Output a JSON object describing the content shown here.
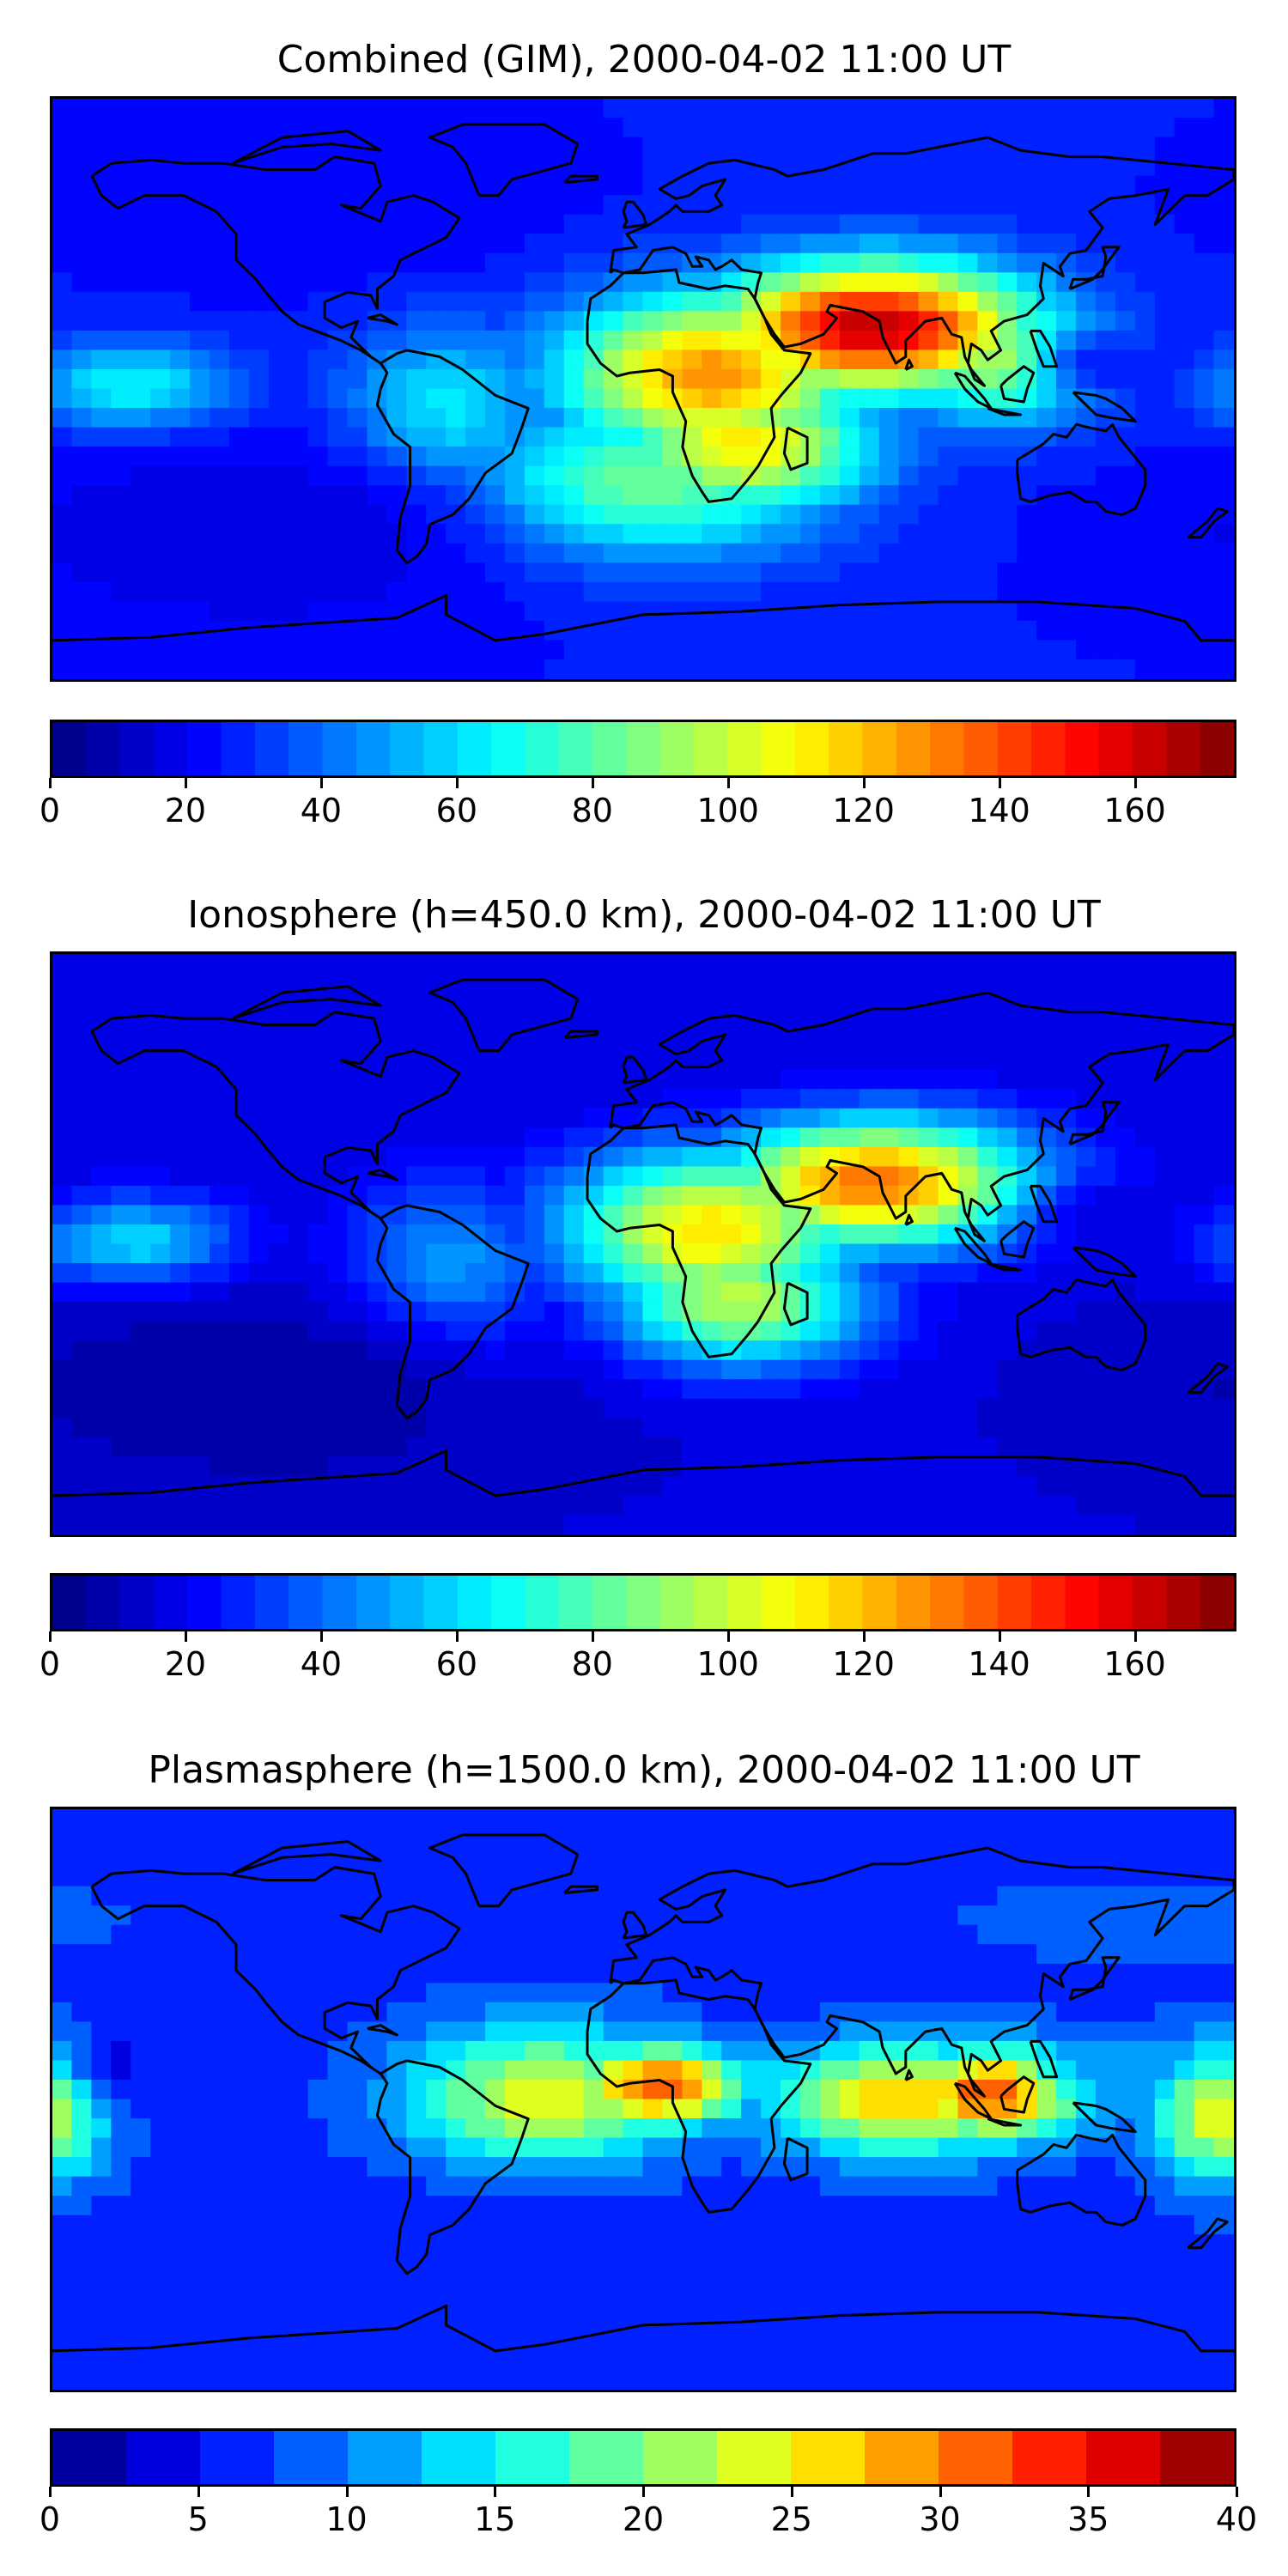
{
  "panels": [
    {
      "title": "Combined (GIM), 2000-04-02 11:00 UT",
      "colorbar": {
        "min": 0,
        "max": 175,
        "levels": 35,
        "ticks": [
          0,
          20,
          40,
          60,
          80,
          100,
          120,
          140,
          160
        ],
        "tick_labels": [
          "0",
          "20",
          "40",
          "60",
          "80",
          "100",
          "120",
          "140",
          "160"
        ]
      }
    },
    {
      "title": "Ionosphere  (h=450.0 km), 2000-04-02 11:00 UT",
      "colorbar": {
        "min": 0,
        "max": 175,
        "levels": 35,
        "ticks": [
          0,
          20,
          40,
          60,
          80,
          100,
          120,
          140,
          160
        ],
        "tick_labels": [
          "0",
          "20",
          "40",
          "60",
          "80",
          "100",
          "120",
          "140",
          "160"
        ]
      }
    },
    {
      "title": "Plasmasphere (h=1500.0 km), 2000-04-02 11:00 UT",
      "colorbar": {
        "min": 0,
        "max": 40,
        "levels": 16,
        "ticks": [
          0,
          5,
          10,
          15,
          20,
          25,
          30,
          35,
          40
        ],
        "tick_labels": [
          "0",
          "5",
          "10",
          "15",
          "20",
          "25",
          "30",
          "35",
          "40"
        ]
      }
    }
  ],
  "chart_data": [
    {
      "type": "heatmap",
      "title": "Combined (GIM), 2000-04-02 11:00 UT",
      "colormap": "jet",
      "projection": "world map, longitude -180 to 180, latitude -90 to 90",
      "value_range": [
        0,
        175
      ],
      "maxima": [
        {
          "region": "Arabian Sea / India",
          "value": 165
        },
        {
          "region": "Central Africa",
          "value": 130
        },
        {
          "region": "Southern Africa / Madagascar",
          "value": 115
        },
        {
          "region": "South Atlantic",
          "value": 95
        },
        {
          "region": "Southeast Asia",
          "value": 100
        },
        {
          "region": "Central Pacific",
          "value": 70
        },
        {
          "region": "South America",
          "value": 70
        }
      ],
      "minima": [
        {
          "region": "Western Pacific (east of Philippines)",
          "value": 25
        },
        {
          "region": "South Pacific",
          "value": 15
        },
        {
          "region": "North America / Arctic",
          "value": 20
        }
      ]
    },
    {
      "type": "heatmap",
      "title": "Ionosphere  (h=450.0 km), 2000-04-02 11:00 UT",
      "colormap": "jet",
      "projection": "world map, longitude -180 to 180, latitude -90 to 90",
      "value_range": [
        0,
        175
      ],
      "maxima": [
        {
          "region": "Arabian Sea / India",
          "value": 135
        },
        {
          "region": "Central Africa",
          "value": 115
        },
        {
          "region": "Southern Africa",
          "value": 100
        },
        {
          "region": "Central Pacific",
          "value": 65
        },
        {
          "region": "South America",
          "value": 55
        }
      ],
      "minima": [
        {
          "region": "Western Pacific (east of Philippines)",
          "value": 15
        },
        {
          "region": "South Pacific",
          "value": 5
        },
        {
          "region": "North Atlantic / Arctic",
          "value": 15
        }
      ]
    },
    {
      "type": "heatmap",
      "title": "Plasmasphere (h=1500.0 km), 2000-04-02 11:00 UT",
      "colormap": "jet",
      "projection": "world map, longitude -180 to 180, latitude -90 to 90",
      "value_range": [
        0,
        40
      ],
      "maxima": [
        {
          "region": "Maritime Southeast Asia",
          "value": 33
        },
        {
          "region": "Central Africa (Gulf of Guinea)",
          "value": 32
        },
        {
          "region": "Indian Ocean",
          "value": 27
        },
        {
          "region": "Tropical Atlantic",
          "value": 24
        },
        {
          "region": "Western Pacific edge",
          "value": 24
        }
      ],
      "minima": [
        {
          "region": "Central Pacific (northern hemisphere)",
          "value": 4
        },
        {
          "region": "South Pacific / South Atlantic",
          "value": 6
        },
        {
          "region": "North Pacific / Siberia",
          "value": 8
        },
        {
          "region": "Western Pacific (east of Philippines)",
          "value": 12
        }
      ]
    }
  ]
}
